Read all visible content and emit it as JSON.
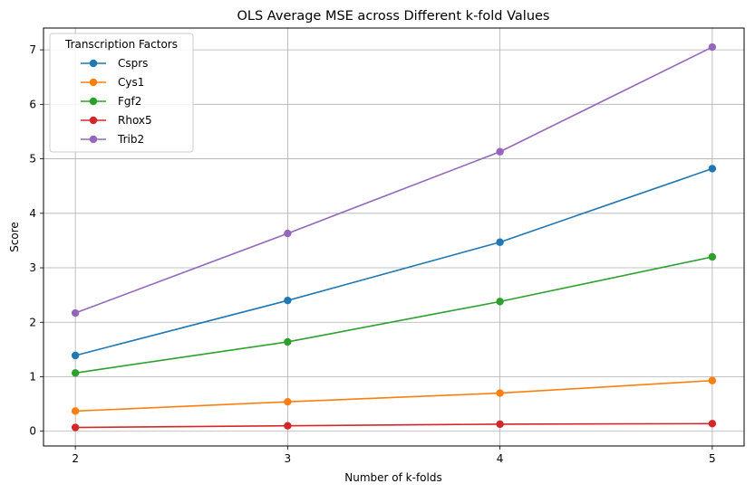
{
  "chart_data": {
    "type": "line",
    "title": "OLS Average MSE across Different k-fold Values",
    "xlabel": "Number of k-folds",
    "ylabel": "Score",
    "x": [
      2,
      3,
      4,
      5
    ],
    "x_ticks": [
      "2",
      "3",
      "4",
      "5"
    ],
    "y_ticks": [
      "0",
      "1",
      "2",
      "3",
      "4",
      "5",
      "6",
      "7"
    ],
    "ylim": [
      -0.27,
      7.4
    ],
    "grid": true,
    "marker": "circle",
    "legend": {
      "title": "Transcription Factors",
      "placement": "upper-left"
    },
    "series": [
      {
        "name": "Csprs",
        "color": "#1f77b4",
        "values": [
          1.39,
          2.4,
          3.47,
          4.82
        ]
      },
      {
        "name": "Cys1",
        "color": "#ff7f0e",
        "values": [
          0.37,
          0.54,
          0.7,
          0.93
        ]
      },
      {
        "name": "Fgf2",
        "color": "#2ca02c",
        "values": [
          1.07,
          1.64,
          2.38,
          3.2
        ]
      },
      {
        "name": "Rhox5",
        "color": "#d62728",
        "values": [
          0.07,
          0.1,
          0.13,
          0.14
        ]
      },
      {
        "name": "Trib2",
        "color": "#9467bd",
        "values": [
          2.17,
          3.63,
          5.13,
          7.05
        ]
      }
    ]
  }
}
